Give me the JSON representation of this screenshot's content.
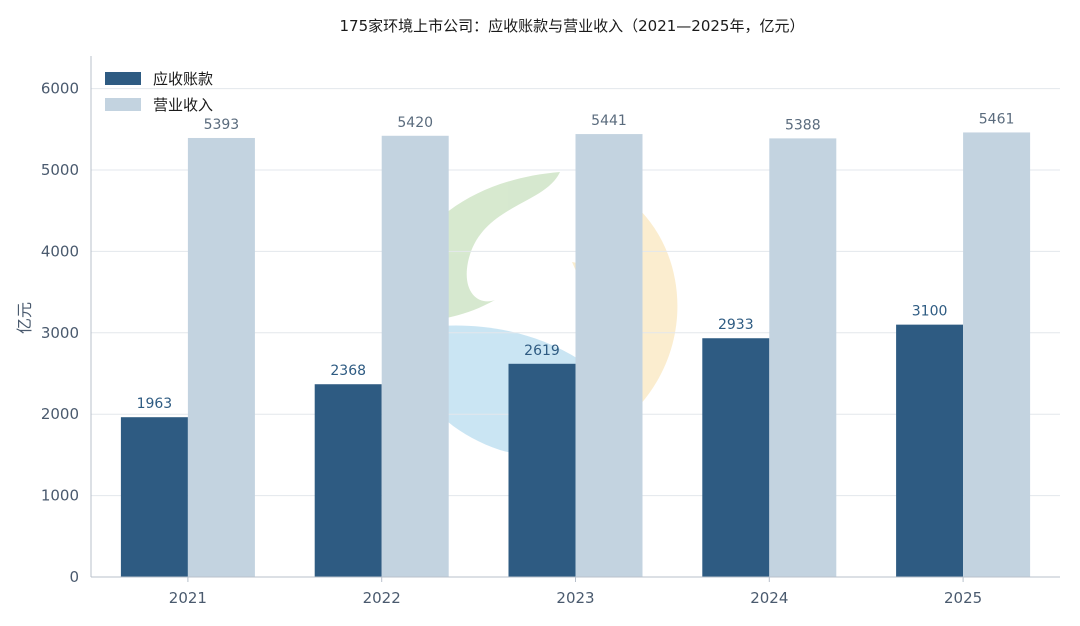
{
  "chart_data": {
    "type": "bar",
    "title": "175家环境上市公司：应收账款与营业收入（2021—2025年，亿元）",
    "xlabel": "",
    "ylabel": "亿元",
    "ylim": [
      0,
      6400
    ],
    "yticks": [
      0,
      1000,
      2000,
      3000,
      4000,
      5000,
      6000
    ],
    "grid": true,
    "legend_position": "top-left",
    "categories": [
      "2021",
      "2022",
      "2023",
      "2024",
      "2025"
    ],
    "series": [
      {
        "name": "应收账款",
        "color": "#2e5b82",
        "label_color": "#2e5b82",
        "values": [
          1963,
          2368,
          2619,
          2933,
          3100
        ]
      },
      {
        "name": "营业收入",
        "color": "#c3d3e0",
        "label_color": "#5a6b7d",
        "values": [
          5393,
          5420,
          5441,
          5388,
          5461
        ]
      }
    ]
  }
}
